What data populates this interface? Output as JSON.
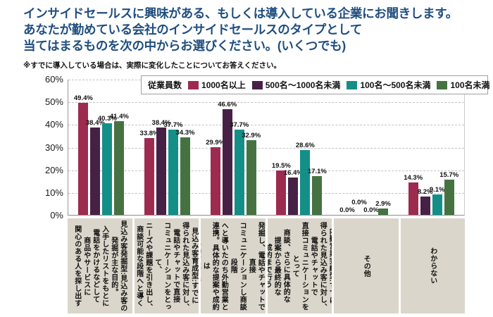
{
  "header": {
    "title_lines": [
      "インサイドセールスに興味がある、もしくは導入している企業にお聞きします。",
      "あなたが勤めている会社のインサイドセールスのタイプとして",
      "当てはまるものを次の中からお選びください。(いくつでも)"
    ],
    "note": "※すでに導入している場合は、実際に変化したことについてお答えください。"
  },
  "chart_data": {
    "type": "bar",
    "title": "",
    "legend": {
      "title": "従業員数",
      "position": "top-inside"
    },
    "ylim": [
      0,
      60
    ],
    "yticks": [
      "0%",
      "10%",
      "20%",
      "30%",
      "40%",
      "50%",
      "60%"
    ],
    "grid": "horizontal-dashed",
    "value_label_format": "0.0%",
    "categories": [
      "見込み客発掘型:見込み客の\n発掘が主な目的。\n入手したリストをもとに\n電話をかけるなどして\n商品やサービスに\n関心のある人を探し出す",
      "見込み客育成型:すでに\n得られた見込み客に対し、\n電話やチャットで直接\nコミュニケーションをとって、\nニーズや課題を引き出し、\n商談可能な段階へと導く",
      "外勤営業連携型:見込み客を\n発掘し、電話やチャットで直接\nコミュニケーションし商談段階\nへと導いたのち外勤営業と\n連携。具体的な提案や成約は\n外勤営業で行う",
      "内勤営業完結型:すでに\n得られた見込み客に対し、\n電話やチャットで\n直接コミュニケーションをとって\n商談、さらに具体的な\n提案から最終的な\n成約まで行う",
      "その他",
      "わからない"
    ],
    "series": [
      {
        "name": "1000名以上",
        "color": "#9d2b50",
        "values": [
          49.4,
          33.8,
          29.9,
          19.5,
          0.0,
          14.3
        ]
      },
      {
        "name": "500名〜1000名未満",
        "color": "#472145",
        "values": [
          38.4,
          38.4,
          46.6,
          16.4,
          0.0,
          8.2
        ]
      },
      {
        "name": "100名〜500名未満",
        "color": "#148f88",
        "values": [
          40.3,
          37.7,
          37.7,
          28.6,
          0.0,
          9.1
        ]
      },
      {
        "name": "100名未満",
        "color": "#467242",
        "values": [
          41.4,
          34.3,
          32.9,
          17.1,
          2.9,
          15.7
        ]
      }
    ],
    "colors": {
      "title_text": "#204e7f",
      "category_cell_bg": "#dbd6cb"
    }
  }
}
